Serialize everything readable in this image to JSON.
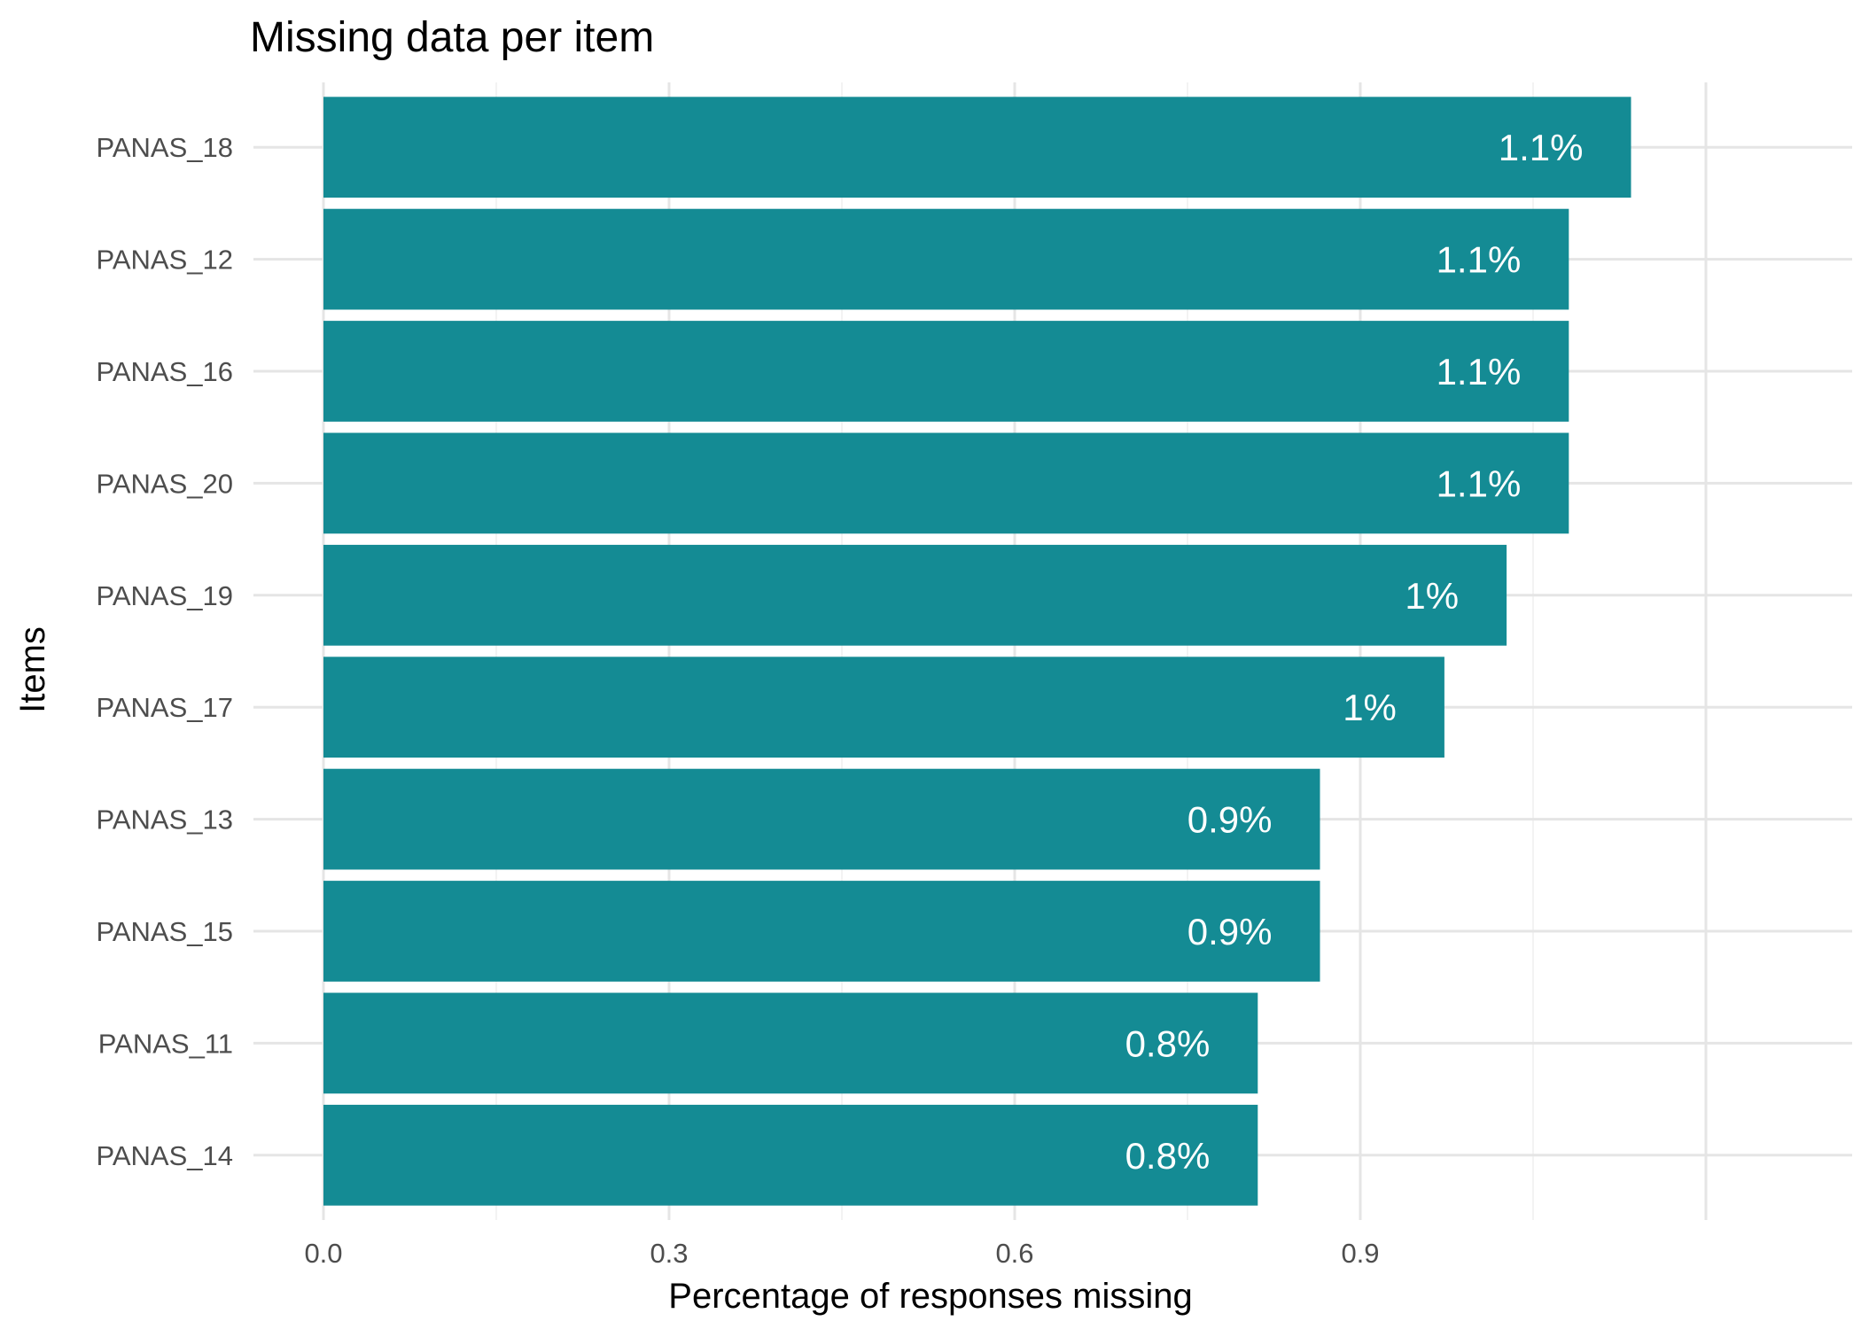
{
  "chart_data": {
    "type": "bar",
    "orientation": "horizontal",
    "title": "Missing data per item",
    "xlabel": "Percentage of responses missing",
    "ylabel": "Items",
    "xlim": [
      0,
      1.18
    ],
    "x_ticks": [
      0.0,
      0.3,
      0.6,
      0.9
    ],
    "x_tick_labels": [
      "0.0",
      "0.3",
      "0.6",
      "0.9"
    ],
    "x_minor_ticks": [
      0.15,
      0.45,
      0.75,
      1.05
    ],
    "categories": [
      "PANAS_18",
      "PANAS_12",
      "PANAS_16",
      "PANAS_20",
      "PANAS_19",
      "PANAS_17",
      "PANAS_13",
      "PANAS_15",
      "PANAS_11",
      "PANAS_14"
    ],
    "values": [
      1.135,
      1.081,
      1.081,
      1.081,
      1.027,
      0.973,
      0.865,
      0.865,
      0.811,
      0.811
    ],
    "labels": [
      "1.1%",
      "1.1%",
      "1.1%",
      "1.1%",
      "1%",
      "1%",
      "0.9%",
      "0.9%",
      "0.8%",
      "0.8%"
    ],
    "bar_color": "#148B94",
    "grid": true,
    "legend": "none"
  }
}
